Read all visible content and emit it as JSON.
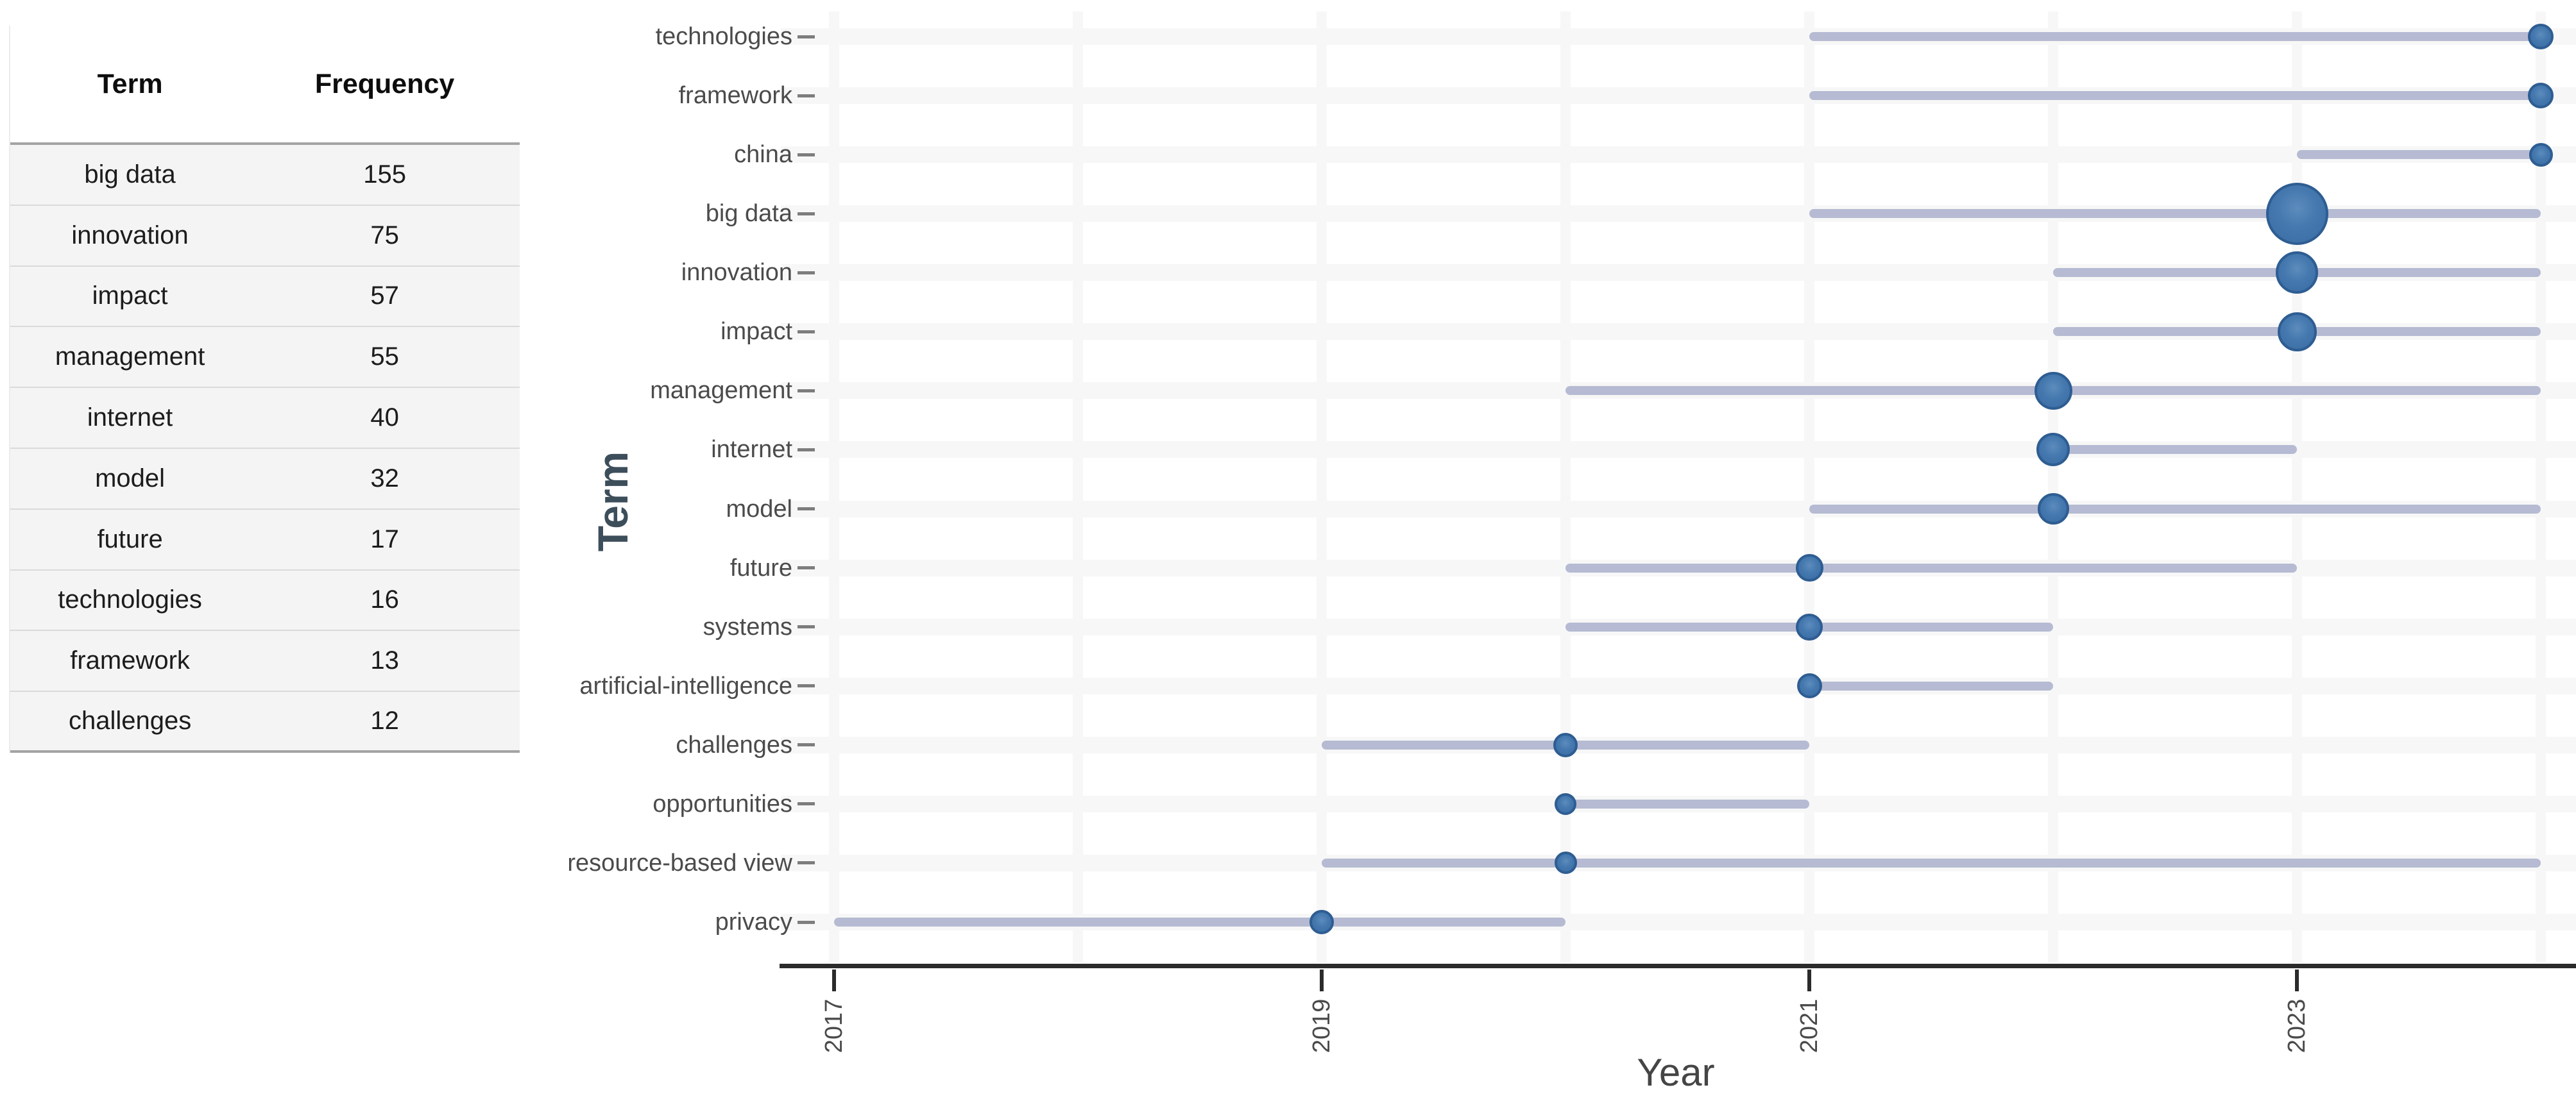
{
  "table": {
    "headers": [
      "Term",
      "Frequency"
    ],
    "rows": [
      [
        "big data",
        "155"
      ],
      [
        "innovation",
        "75"
      ],
      [
        "impact",
        "57"
      ],
      [
        "management",
        "55"
      ],
      [
        "internet",
        "40"
      ],
      [
        "model",
        "32"
      ],
      [
        "future",
        "17"
      ],
      [
        "technologies",
        "16"
      ],
      [
        "framework",
        "13"
      ],
      [
        "challenges",
        "12"
      ]
    ]
  },
  "chart_data": {
    "type": "scatter",
    "variant": "trend-topics-timeline",
    "title": "",
    "xlabel": "Year",
    "ylabel": "Term",
    "x_ticks": [
      2017,
      2019,
      2021,
      2023
    ],
    "x_range": [
      2016.8,
      2024.2
    ],
    "grid": true,
    "legend": "none",
    "series": [
      {
        "term": "technologies",
        "year_start": 2021,
        "year_end": 2024,
        "dot_year": 2024,
        "dot_diameter": 40
      },
      {
        "term": "framework",
        "year_start": 2021,
        "year_end": 2024,
        "dot_year": 2024,
        "dot_diameter": 40
      },
      {
        "term": "china",
        "year_start": 2023,
        "year_end": 2024,
        "dot_year": 2024,
        "dot_diameter": 37
      },
      {
        "term": "big data",
        "year_start": 2021,
        "year_end": 2024,
        "dot_year": 2023,
        "dot_diameter": 97
      },
      {
        "term": "innovation",
        "year_start": 2022,
        "year_end": 2024,
        "dot_year": 2023,
        "dot_diameter": 66
      },
      {
        "term": "impact",
        "year_start": 2022,
        "year_end": 2024,
        "dot_year": 2023,
        "dot_diameter": 61
      },
      {
        "term": "management",
        "year_start": 2020,
        "year_end": 2024,
        "dot_year": 2022,
        "dot_diameter": 59
      },
      {
        "term": "internet",
        "year_start": 2022,
        "year_end": 2023,
        "dot_year": 2022,
        "dot_diameter": 52
      },
      {
        "term": "model",
        "year_start": 2021,
        "year_end": 2024,
        "dot_year": 2022,
        "dot_diameter": 49
      },
      {
        "term": "future",
        "year_start": 2020,
        "year_end": 2023,
        "dot_year": 2021,
        "dot_diameter": 43
      },
      {
        "term": "systems",
        "year_start": 2020,
        "year_end": 2022,
        "dot_year": 2021,
        "dot_diameter": 42
      },
      {
        "term": "artificial-intelligence",
        "year_start": 2021,
        "year_end": 2022,
        "dot_year": 2021,
        "dot_diameter": 39
      },
      {
        "term": "challenges",
        "year_start": 2019,
        "year_end": 2021,
        "dot_year": 2020,
        "dot_diameter": 38
      },
      {
        "term": "opportunities",
        "year_start": 2020,
        "year_end": 2021,
        "dot_year": 2020,
        "dot_diameter": 34
      },
      {
        "term": "resource-based view",
        "year_start": 2019,
        "year_end": 2024,
        "dot_year": 2020,
        "dot_diameter": 35
      },
      {
        "term": "privacy",
        "year_start": 2017,
        "year_end": 2020,
        "dot_year": 2019,
        "dot_diameter": 38
      }
    ],
    "colors": {
      "dot_fill": "#4478ae",
      "dot_edge": "#2e5d92",
      "segment": "#b2b7d0",
      "gridline": "#f7f7f7",
      "axis": "#2b2b2b",
      "tick_text": "#4a4a4a",
      "term_axis_title": "#3d4e5b"
    }
  }
}
